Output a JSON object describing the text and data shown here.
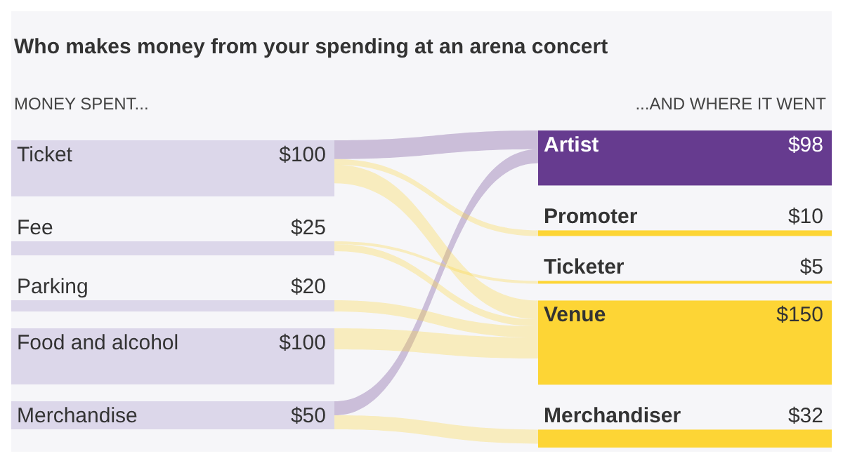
{
  "chart_data": {
    "type": "other",
    "title": "Who makes money from your spending at an arena concert",
    "annotations": [
      "MONEY SPENT...",
      "...AND WHERE IT WENT"
    ],
    "categories": [
      "Ticket",
      "Fee",
      "Parking",
      "Food and alcohol",
      "Merchandise"
    ],
    "y_categories": [
      "Artist",
      "Promoter",
      "Ticketer",
      "Venue",
      "Merchandiser"
    ],
    "series": [
      {
        "values": [
          100,
          25,
          20,
          100,
          50
        ],
        "value_labels": [
          "$100",
          "$25",
          "$20",
          "$100",
          "$50"
        ],
        "color": "#dcd7ea"
      },
      {
        "values": [
          98,
          10,
          5,
          150,
          32
        ],
        "value_labels": [
          "$98",
          "$10",
          "$5",
          "$150",
          "$32"
        ],
        "colors": [
          "#663b8f",
          "#fdd535",
          "#fdd535",
          "#fdd535",
          "#fdd535"
        ]
      }
    ],
    "cells": [
      [
        true,
        null,
        null,
        null,
        true
      ],
      [
        true,
        null,
        null,
        null,
        null
      ],
      [
        null,
        true,
        null,
        null,
        null
      ],
      [
        true,
        true,
        true,
        true,
        null
      ],
      [
        null,
        null,
        null,
        null,
        true
      ]
    ]
  }
}
